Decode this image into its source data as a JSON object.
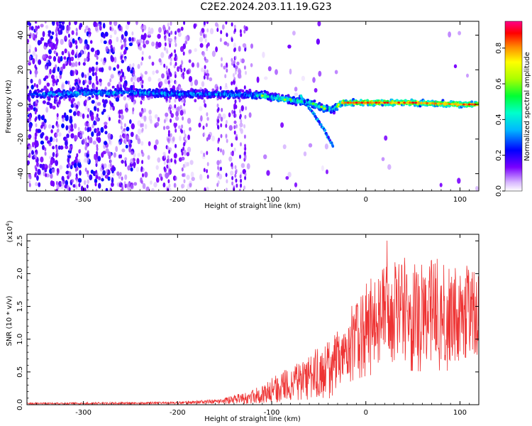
{
  "title": "C2E2.2024.203.11.19.G23",
  "colors": {
    "snr_line": "#ee3333",
    "spectrogram_low": "#8800ff",
    "spectrogram_mid": "#00ffcc",
    "spectrogram_high": "#ff0000"
  },
  "chart_data": [
    {
      "type": "heatmap",
      "name": "spectrogram",
      "xlabel": "Height of straight line (km)",
      "ylabel": "Frequency (Hz)",
      "xlim": [
        -360,
        120
      ],
      "ylim": [
        -50,
        48
      ],
      "xticks": [
        -300,
        -200,
        -100,
        0,
        100
      ],
      "yticks": [
        -40,
        -20,
        0,
        20,
        40
      ],
      "colorbar": {
        "label": "Normalized spectral amplitude",
        "range": [
          0,
          0.95
        ],
        "ticks": [
          0.0,
          0.2,
          0.4,
          0.6,
          0.8
        ],
        "colormap": "rainbow"
      },
      "ridge": {
        "points": [
          {
            "x": -340,
            "y": 6
          },
          {
            "x": -250,
            "y": 7
          },
          {
            "x": -200,
            "y": 6
          },
          {
            "x": -150,
            "y": 6
          },
          {
            "x": -110,
            "y": 5
          },
          {
            "x": -85,
            "y": 3
          },
          {
            "x": -60,
            "y": 1
          },
          {
            "x": -45,
            "y": -2
          },
          {
            "x": -35,
            "y": -3
          },
          {
            "x": -25,
            "y": 1
          },
          {
            "x": 0,
            "y": 1
          },
          {
            "x": 50,
            "y": 1
          },
          {
            "x": 100,
            "y": 0
          },
          {
            "x": 120,
            "y": 0
          }
        ],
        "branch": [
          {
            "x": -70,
            "y": 5
          },
          {
            "x": -55,
            "y": -6
          },
          {
            "x": -45,
            "y": -14
          },
          {
            "x": -35,
            "y": -24
          }
        ]
      },
      "grid": false
    },
    {
      "type": "line",
      "name": "snr",
      "xlabel": "Height of straight line (km)",
      "ylabel": "SNR (10 * v/v)",
      "y_multiplier": "(x10",
      "y_multiplier_exp": "4",
      "y_multiplier_close": ")",
      "xlim": [
        -360,
        120
      ],
      "ylim": [
        0,
        2.6
      ],
      "xticks": [
        -300,
        -200,
        -100,
        0,
        100
      ],
      "yticks": [
        0.0,
        0.5,
        1.0,
        1.5,
        2.0,
        2.5
      ],
      "envelope": [
        {
          "x": -360,
          "y": 0.02
        },
        {
          "x": -200,
          "y": 0.03
        },
        {
          "x": -150,
          "y": 0.06
        },
        {
          "x": -120,
          "y": 0.12
        },
        {
          "x": -100,
          "y": 0.22
        },
        {
          "x": -80,
          "y": 0.32
        },
        {
          "x": -60,
          "y": 0.42
        },
        {
          "x": -40,
          "y": 0.55
        },
        {
          "x": -25,
          "y": 0.75
        },
        {
          "x": -15,
          "y": 1.05
        },
        {
          "x": 0,
          "y": 1.25
        },
        {
          "x": 20,
          "y": 1.4
        },
        {
          "x": 40,
          "y": 1.5
        },
        {
          "x": 60,
          "y": 1.45
        },
        {
          "x": 80,
          "y": 1.5
        },
        {
          "x": 100,
          "y": 1.45
        },
        {
          "x": 120,
          "y": 1.4
        }
      ],
      "peak": {
        "x": 35,
        "y": 2.6
      },
      "grid": false
    }
  ]
}
